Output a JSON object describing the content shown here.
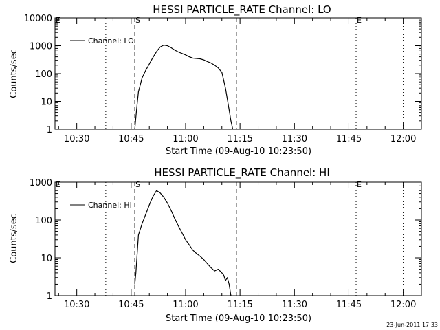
{
  "chart_data": [
    {
      "type": "line",
      "title": "HESSI PARTICLE_RATE Channel: LO",
      "xlabel": "Start Time (09-Aug-10 10:23:50)",
      "ylabel": "Counts/sec",
      "yscale": "log",
      "xlim": [
        "10:24",
        "12:05"
      ],
      "ylim": [
        1,
        10000
      ],
      "x_ticks": [
        "10:30",
        "10:45",
        "11:00",
        "11:15",
        "11:30",
        "11:45",
        "12:00"
      ],
      "y_ticks": [
        {
          "value": 1,
          "label": "1"
        },
        {
          "value": 10,
          "label": "10"
        },
        {
          "value": 100,
          "label": "100"
        },
        {
          "value": 1000,
          "label": "1000"
        },
        {
          "value": 10000,
          "label": "10000"
        }
      ],
      "legend": {
        "position": "top-left",
        "entries": [
          "Channel: LO"
        ]
      },
      "vlines": [
        {
          "x": "10:24",
          "style": "dotted",
          "label": "E"
        },
        {
          "x": "10:38",
          "style": "dotted",
          "label": ""
        },
        {
          "x": "10:46",
          "style": "dashed",
          "label": "S"
        },
        {
          "x": "11:14",
          "style": "dashed",
          "label": ""
        },
        {
          "x": "11:47",
          "style": "dotted",
          "label": "E"
        },
        {
          "x": "12:00",
          "style": "dotted",
          "label": ""
        }
      ],
      "series": [
        {
          "name": "Channel: LO",
          "x": [
            "10:46",
            "10:46.5",
            "10:47",
            "10:48",
            "10:49",
            "10:50",
            "10:51",
            "10:52",
            "10:53",
            "10:54",
            "10:55",
            "10:56",
            "10:57",
            "10:58",
            "10:59",
            "11:00",
            "11:01",
            "11:02",
            "11:03",
            "11:04",
            "11:05",
            "11:06",
            "11:07",
            "11:08",
            "11:09",
            "11:10",
            "11:11",
            "11:12",
            "11:12.5",
            "11:13"
          ],
          "values": [
            1,
            5,
            22,
            70,
            130,
            220,
            380,
            620,
            900,
            1050,
            1000,
            850,
            700,
            600,
            530,
            470,
            400,
            360,
            350,
            340,
            310,
            270,
            240,
            200,
            160,
            110,
            30,
            5,
            2,
            1
          ]
        }
      ]
    },
    {
      "type": "line",
      "title": "HESSI PARTICLE_RATE Channel: HI",
      "xlabel": "Start Time (09-Aug-10 10:23:50)",
      "ylabel": "Counts/sec",
      "yscale": "log",
      "xlim": [
        "10:24",
        "12:05"
      ],
      "ylim": [
        1,
        1000
      ],
      "x_ticks": [
        "10:30",
        "10:45",
        "11:00",
        "11:15",
        "11:30",
        "11:45",
        "12:00"
      ],
      "y_ticks": [
        {
          "value": 1,
          "label": "1"
        },
        {
          "value": 10,
          "label": "10"
        },
        {
          "value": 100,
          "label": "100"
        },
        {
          "value": 1000,
          "label": "1000"
        }
      ],
      "legend": {
        "position": "top-left",
        "entries": [
          "Channel: HI"
        ]
      },
      "vlines": [
        {
          "x": "10:24",
          "style": "dotted",
          "label": "E"
        },
        {
          "x": "10:38",
          "style": "dotted",
          "label": ""
        },
        {
          "x": "10:46",
          "style": "dashed",
          "label": "S"
        },
        {
          "x": "11:14",
          "style": "dashed",
          "label": ""
        },
        {
          "x": "11:47",
          "style": "dotted",
          "label": "E"
        },
        {
          "x": "12:00",
          "style": "dotted",
          "label": ""
        }
      ],
      "series": [
        {
          "name": "Channel: HI",
          "x": [
            "10:46",
            "10:46.3",
            "10:47",
            "10:48",
            "10:49",
            "10:50",
            "10:51",
            "10:52",
            "10:53",
            "10:54",
            "10:55",
            "10:56",
            "10:57",
            "10:58",
            "10:59",
            "11:00",
            "11:01",
            "11:02",
            "11:03",
            "11:04",
            "11:05",
            "11:06",
            "11:07",
            "11:08",
            "11:09",
            "11:10",
            "11:10.5",
            "11:11",
            "11:11.5",
            "11:12",
            "11:12.5"
          ],
          "values": [
            2,
            4,
            40,
            80,
            140,
            250,
            420,
            600,
            520,
            400,
            280,
            180,
            110,
            70,
            46,
            30,
            22,
            16,
            13,
            11,
            9,
            7,
            5.5,
            4.5,
            5,
            4,
            3.5,
            2.5,
            3,
            2,
            1
          ]
        }
      ]
    }
  ],
  "footer": {
    "timestamp": "23-Jun-2011 17:33"
  }
}
